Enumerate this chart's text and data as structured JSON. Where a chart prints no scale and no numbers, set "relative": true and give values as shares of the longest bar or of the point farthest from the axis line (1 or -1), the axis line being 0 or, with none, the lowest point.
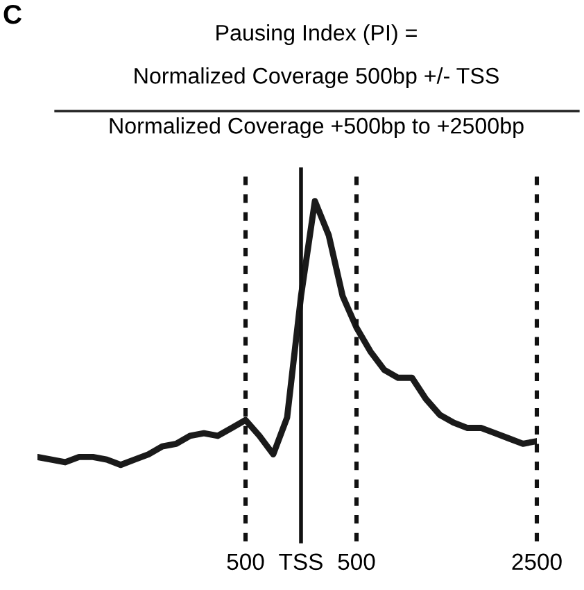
{
  "chart_data": {
    "type": "line",
    "relative": true,
    "title": "Pausing Index (PI) =",
    "annotations": [
      "C",
      "Normalized Coverage 500bp +/- TSS",
      "Normalized Coverage +500bp to +2500bp"
    ],
    "categories": [
      null,
      null,
      null,
      null,
      null,
      null,
      null,
      null,
      null,
      null,
      null,
      null,
      null,
      null,
      null,
      "500",
      null,
      null,
      null,
      "TSS",
      null,
      null,
      null,
      "500",
      null,
      null,
      null,
      null,
      null,
      null,
      null,
      null,
      null,
      null,
      null,
      null,
      "2500"
    ],
    "legend": false,
    "marker": "none",
    "line_style": "solid",
    "ref_lines": [
      {
        "axis": "x",
        "value": "500",
        "color": "#111111",
        "line_style": "dotted"
      },
      {
        "axis": "x",
        "value": "TSS",
        "color": "#111111",
        "line_style": "solid"
      },
      {
        "axis": "x",
        "value": "2500",
        "color": "#111111",
        "line_style": "dotted"
      }
    ],
    "series": [
      {
        "color": "#1a1a1a",
        "values": [
          0.03,
          0.02,
          0.01,
          0.03,
          0.03,
          0.02,
          0,
          0.02,
          0.04,
          0.07,
          0.08,
          0.11,
          0.12,
          0.11,
          0.14,
          0.17,
          0.11,
          0.04,
          0.18,
          0.64,
          1,
          0.87,
          0.64,
          0.52,
          0.43,
          0.36,
          0.33,
          0.33,
          0.25,
          0.19,
          0.16,
          0.14,
          0.14,
          0.12,
          0.1,
          0.08,
          0.09
        ]
      }
    ]
  }
}
